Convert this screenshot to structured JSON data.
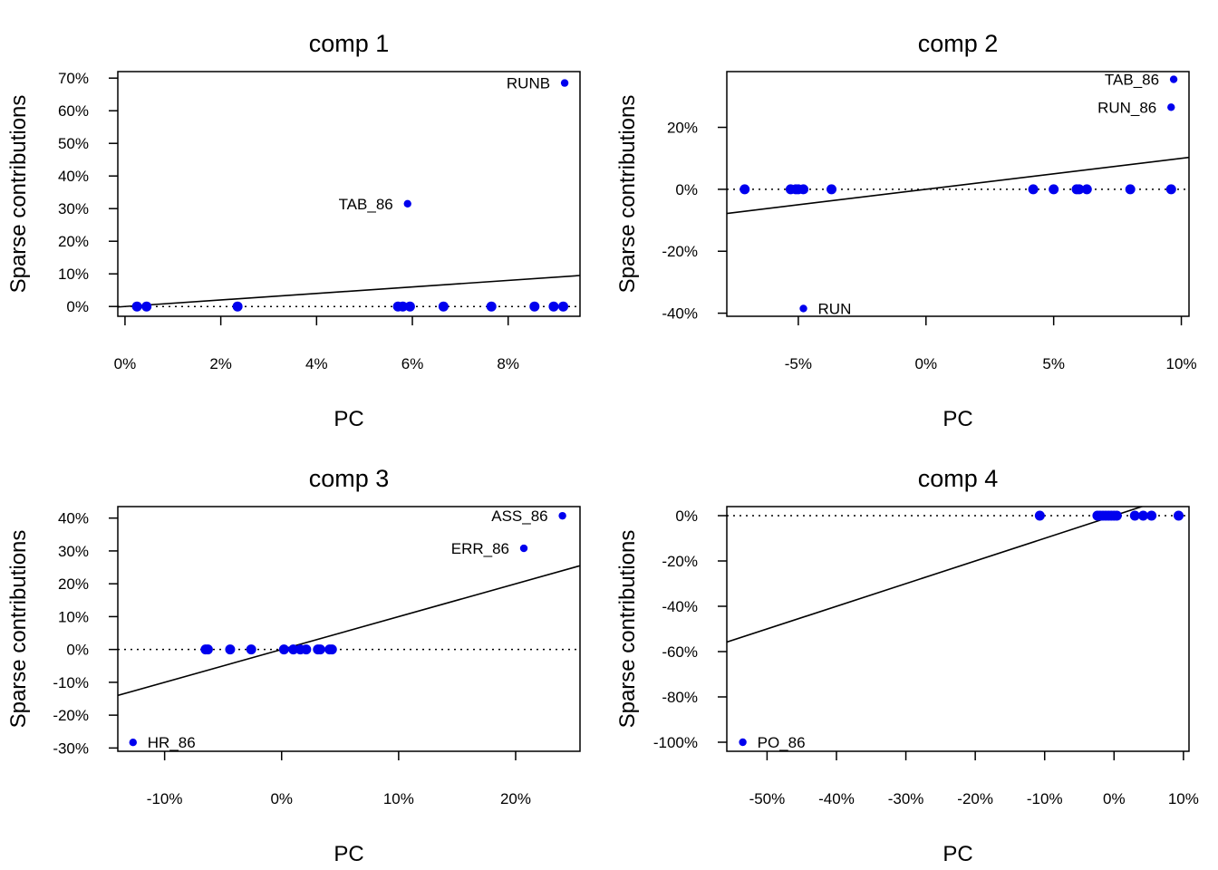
{
  "chart_data": [
    {
      "type": "scatter",
      "title": "comp 1",
      "xlabel": "PC",
      "ylabel": "Sparse contributions",
      "xlim": [
        -0.0015,
        0.095
      ],
      "ylim": [
        -0.03,
        0.72
      ],
      "xticks": [
        0,
        0.02,
        0.04,
        0.06,
        0.08
      ],
      "xtick_labels": [
        "0%",
        "2%",
        "4%",
        "6%",
        "8%"
      ],
      "yticks": [
        0,
        0.1,
        0.2,
        0.3,
        0.4,
        0.5,
        0.6,
        0.7
      ],
      "ytick_labels": [
        "0%",
        "10%",
        "20%",
        "30%",
        "40%",
        "50%",
        "60%",
        "70%"
      ],
      "points": [
        {
          "x": 0.0025,
          "y": 0,
          "label": ""
        },
        {
          "x": 0.0045,
          "y": 0,
          "label": ""
        },
        {
          "x": 0.0235,
          "y": 0,
          "label": ""
        },
        {
          "x": 0.057,
          "y": 0,
          "label": ""
        },
        {
          "x": 0.058,
          "y": 0,
          "label": ""
        },
        {
          "x": 0.0595,
          "y": 0,
          "label": ""
        },
        {
          "x": 0.0665,
          "y": 0,
          "label": ""
        },
        {
          "x": 0.0765,
          "y": 0,
          "label": ""
        },
        {
          "x": 0.0855,
          "y": 0,
          "label": ""
        },
        {
          "x": 0.0895,
          "y": 0,
          "label": ""
        },
        {
          "x": 0.0915,
          "y": 0,
          "label": ""
        },
        {
          "x": 0.059,
          "y": 0.315,
          "label": "TAB_86"
        },
        {
          "x": 0.0918,
          "y": 0.685,
          "label": "RUNB"
        }
      ],
      "fit_line": {
        "slope": 1,
        "intercept": 0
      },
      "reference_line": 0,
      "color": "#0000ee"
    },
    {
      "type": "scatter",
      "title": "comp 2",
      "xlabel": "PC",
      "ylabel": "Sparse contributions",
      "xlim": [
        -0.078,
        0.103
      ],
      "ylim": [
        -0.41,
        0.38
      ],
      "xticks": [
        -0.05,
        0,
        0.05,
        0.1
      ],
      "xtick_labels": [
        "-5%",
        "0%",
        "5%",
        "10%"
      ],
      "yticks": [
        -0.4,
        -0.2,
        0,
        0.2
      ],
      "ytick_labels": [
        "-40%",
        "-20%",
        "0%",
        "20%"
      ],
      "points": [
        {
          "x": -0.071,
          "y": 0,
          "label": ""
        },
        {
          "x": -0.053,
          "y": 0,
          "label": ""
        },
        {
          "x": -0.051,
          "y": 0,
          "label": ""
        },
        {
          "x": -0.05,
          "y": 0,
          "label": ""
        },
        {
          "x": -0.048,
          "y": 0,
          "label": ""
        },
        {
          "x": -0.037,
          "y": 0,
          "label": ""
        },
        {
          "x": 0.042,
          "y": 0,
          "label": ""
        },
        {
          "x": 0.05,
          "y": 0,
          "label": ""
        },
        {
          "x": 0.059,
          "y": 0,
          "label": ""
        },
        {
          "x": 0.06,
          "y": 0,
          "label": ""
        },
        {
          "x": 0.063,
          "y": 0,
          "label": ""
        },
        {
          "x": 0.08,
          "y": 0,
          "label": ""
        },
        {
          "x": 0.096,
          "y": 0,
          "label": ""
        },
        {
          "x": -0.048,
          "y": -0.385,
          "label": "RUN"
        },
        {
          "x": 0.096,
          "y": 0.265,
          "label": "RUN_86"
        },
        {
          "x": 0.097,
          "y": 0.355,
          "label": "TAB_86"
        }
      ],
      "fit_line": {
        "slope": 1,
        "intercept": 0
      },
      "reference_line": 0,
      "color": "#0000ee"
    },
    {
      "type": "scatter",
      "title": "comp 3",
      "xlabel": "PC",
      "ylabel": "Sparse contributions",
      "xlim": [
        -0.14,
        0.255
      ],
      "ylim": [
        -0.31,
        0.435
      ],
      "xticks": [
        -0.1,
        0,
        0.1,
        0.2
      ],
      "xtick_labels": [
        "-10%",
        "0%",
        "10%",
        "20%"
      ],
      "yticks": [
        -0.3,
        -0.2,
        -0.1,
        0,
        0.1,
        0.2,
        0.3,
        0.4
      ],
      "ytick_labels": [
        "-30%",
        "-20%",
        "-10%",
        "0%",
        "10%",
        "20%",
        "30%",
        "40%"
      ],
      "points": [
        {
          "x": -0.065,
          "y": 0,
          "label": ""
        },
        {
          "x": -0.063,
          "y": 0,
          "label": ""
        },
        {
          "x": -0.044,
          "y": 0,
          "label": ""
        },
        {
          "x": -0.026,
          "y": 0,
          "label": ""
        },
        {
          "x": 0.002,
          "y": 0,
          "label": ""
        },
        {
          "x": 0.01,
          "y": 0,
          "label": ""
        },
        {
          "x": 0.016,
          "y": 0,
          "label": ""
        },
        {
          "x": 0.021,
          "y": 0,
          "label": ""
        },
        {
          "x": 0.031,
          "y": 0,
          "label": ""
        },
        {
          "x": 0.033,
          "y": 0,
          "label": ""
        },
        {
          "x": 0.041,
          "y": 0,
          "label": ""
        },
        {
          "x": 0.043,
          "y": 0,
          "label": ""
        },
        {
          "x": -0.127,
          "y": -0.283,
          "label": "HR_86"
        },
        {
          "x": 0.207,
          "y": 0.308,
          "label": "ERR_86"
        },
        {
          "x": 0.24,
          "y": 0.407,
          "label": "ASS_86"
        }
      ],
      "fit_line": {
        "slope": 1,
        "intercept": 0
      },
      "reference_line": 0,
      "color": "#0000ee"
    },
    {
      "type": "scatter",
      "title": "comp 4",
      "xlabel": "PC",
      "ylabel": "Sparse contributions",
      "xlim": [
        -0.558,
        0.108
      ],
      "ylim": [
        -1.04,
        0.04
      ],
      "xticks": [
        -0.5,
        -0.4,
        -0.3,
        -0.2,
        -0.1,
        0,
        0.1
      ],
      "xtick_labels": [
        "-50%",
        "-40%",
        "-30%",
        "-20%",
        "-10%",
        "0%",
        "10%"
      ],
      "yticks": [
        -1.0,
        -0.8,
        -0.6,
        -0.4,
        -0.2,
        0
      ],
      "ytick_labels": [
        "-100%",
        "-80%",
        "-60%",
        "-40%",
        "-20%",
        "0%"
      ],
      "points": [
        {
          "x": -0.107,
          "y": 0,
          "label": ""
        },
        {
          "x": -0.024,
          "y": 0,
          "label": ""
        },
        {
          "x": -0.02,
          "y": 0,
          "label": ""
        },
        {
          "x": -0.016,
          "y": 0,
          "label": ""
        },
        {
          "x": -0.012,
          "y": 0,
          "label": ""
        },
        {
          "x": -0.008,
          "y": 0,
          "label": ""
        },
        {
          "x": -0.004,
          "y": 0,
          "label": ""
        },
        {
          "x": 0.0,
          "y": 0,
          "label": ""
        },
        {
          "x": 0.004,
          "y": 0,
          "label": ""
        },
        {
          "x": 0.03,
          "y": 0,
          "label": ""
        },
        {
          "x": 0.042,
          "y": 0,
          "label": ""
        },
        {
          "x": 0.054,
          "y": 0,
          "label": ""
        },
        {
          "x": 0.093,
          "y": 0,
          "label": ""
        },
        {
          "x": -0.535,
          "y": -1.0,
          "label": "PO_86"
        }
      ],
      "fit_line": {
        "slope": 1,
        "intercept": 0
      },
      "reference_line": 0,
      "color": "#0000ee"
    }
  ]
}
